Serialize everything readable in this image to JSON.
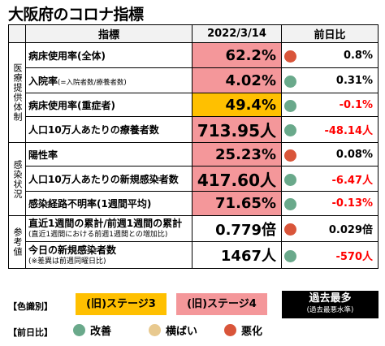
{
  "title": "大阪府のコロナ指標",
  "header": {
    "indicator": "指標",
    "date": "2022/3/14",
    "change": "前日比"
  },
  "categories": {
    "medical": "医療提供体制",
    "infection": "感染状況",
    "reference": "参考値"
  },
  "rows": [
    {
      "label": "病床使用率(全体)",
      "value": "62.2%",
      "change": "0.8%",
      "level": "stage4",
      "trend": "worse"
    },
    {
      "label": "入院率",
      "label_note": "(=入院者数/療養者数)",
      "value": "4.02%",
      "change": "0.31%",
      "level": "stage4",
      "trend": "better"
    },
    {
      "label": "病床使用率(重症者)",
      "value": "49.4%",
      "change": "-0.1%",
      "level": "stage3",
      "trend": "better"
    },
    {
      "label": "人口10万人あたりの療養者数",
      "value": "713.95人",
      "change": "-48.14人",
      "level": "stage4",
      "trend": "better"
    },
    {
      "label": "陽性率",
      "value": "25.23%",
      "change": "0.08%",
      "level": "stage4",
      "trend": "worse"
    },
    {
      "label": "人口10万人あたりの新規感染者数",
      "value": "417.60人",
      "change": "-6.47人",
      "level": "stage4",
      "trend": "better"
    },
    {
      "label": "感染経路不明率(1週間平均)",
      "value": "71.65%",
      "change": "-0.13%",
      "level": "stage4",
      "trend": "better"
    },
    {
      "label": "直近1週間の累計/前週1週間の累計",
      "label_sub": "(直近1週間における前週1週間との増加比)",
      "value": "0.779倍",
      "change": "0.029倍",
      "level": "none",
      "trend": "worse"
    },
    {
      "label": "今日の新規感染者数",
      "label_sub": "(※差異は前週同曜日比)",
      "value": "1467人",
      "change": "-570人",
      "level": "none",
      "trend": "better"
    }
  ],
  "legend": {
    "color_label": "【色識別】",
    "stage3": "(旧)ステージ3",
    "stage4": "(旧)ステージ4",
    "max": "過去最多",
    "max_sub": "(過去最悪水準)",
    "trend_label": "【前日比】",
    "better": "改善",
    "flat": "横ばい",
    "worse": "悪化"
  },
  "colors": {
    "stage3": "#ffc000",
    "stage4": "#f4979a",
    "better": "#6aa98b",
    "flat": "#e8c98f",
    "worse": "#d9553a",
    "negative_text": "#ff0000"
  }
}
